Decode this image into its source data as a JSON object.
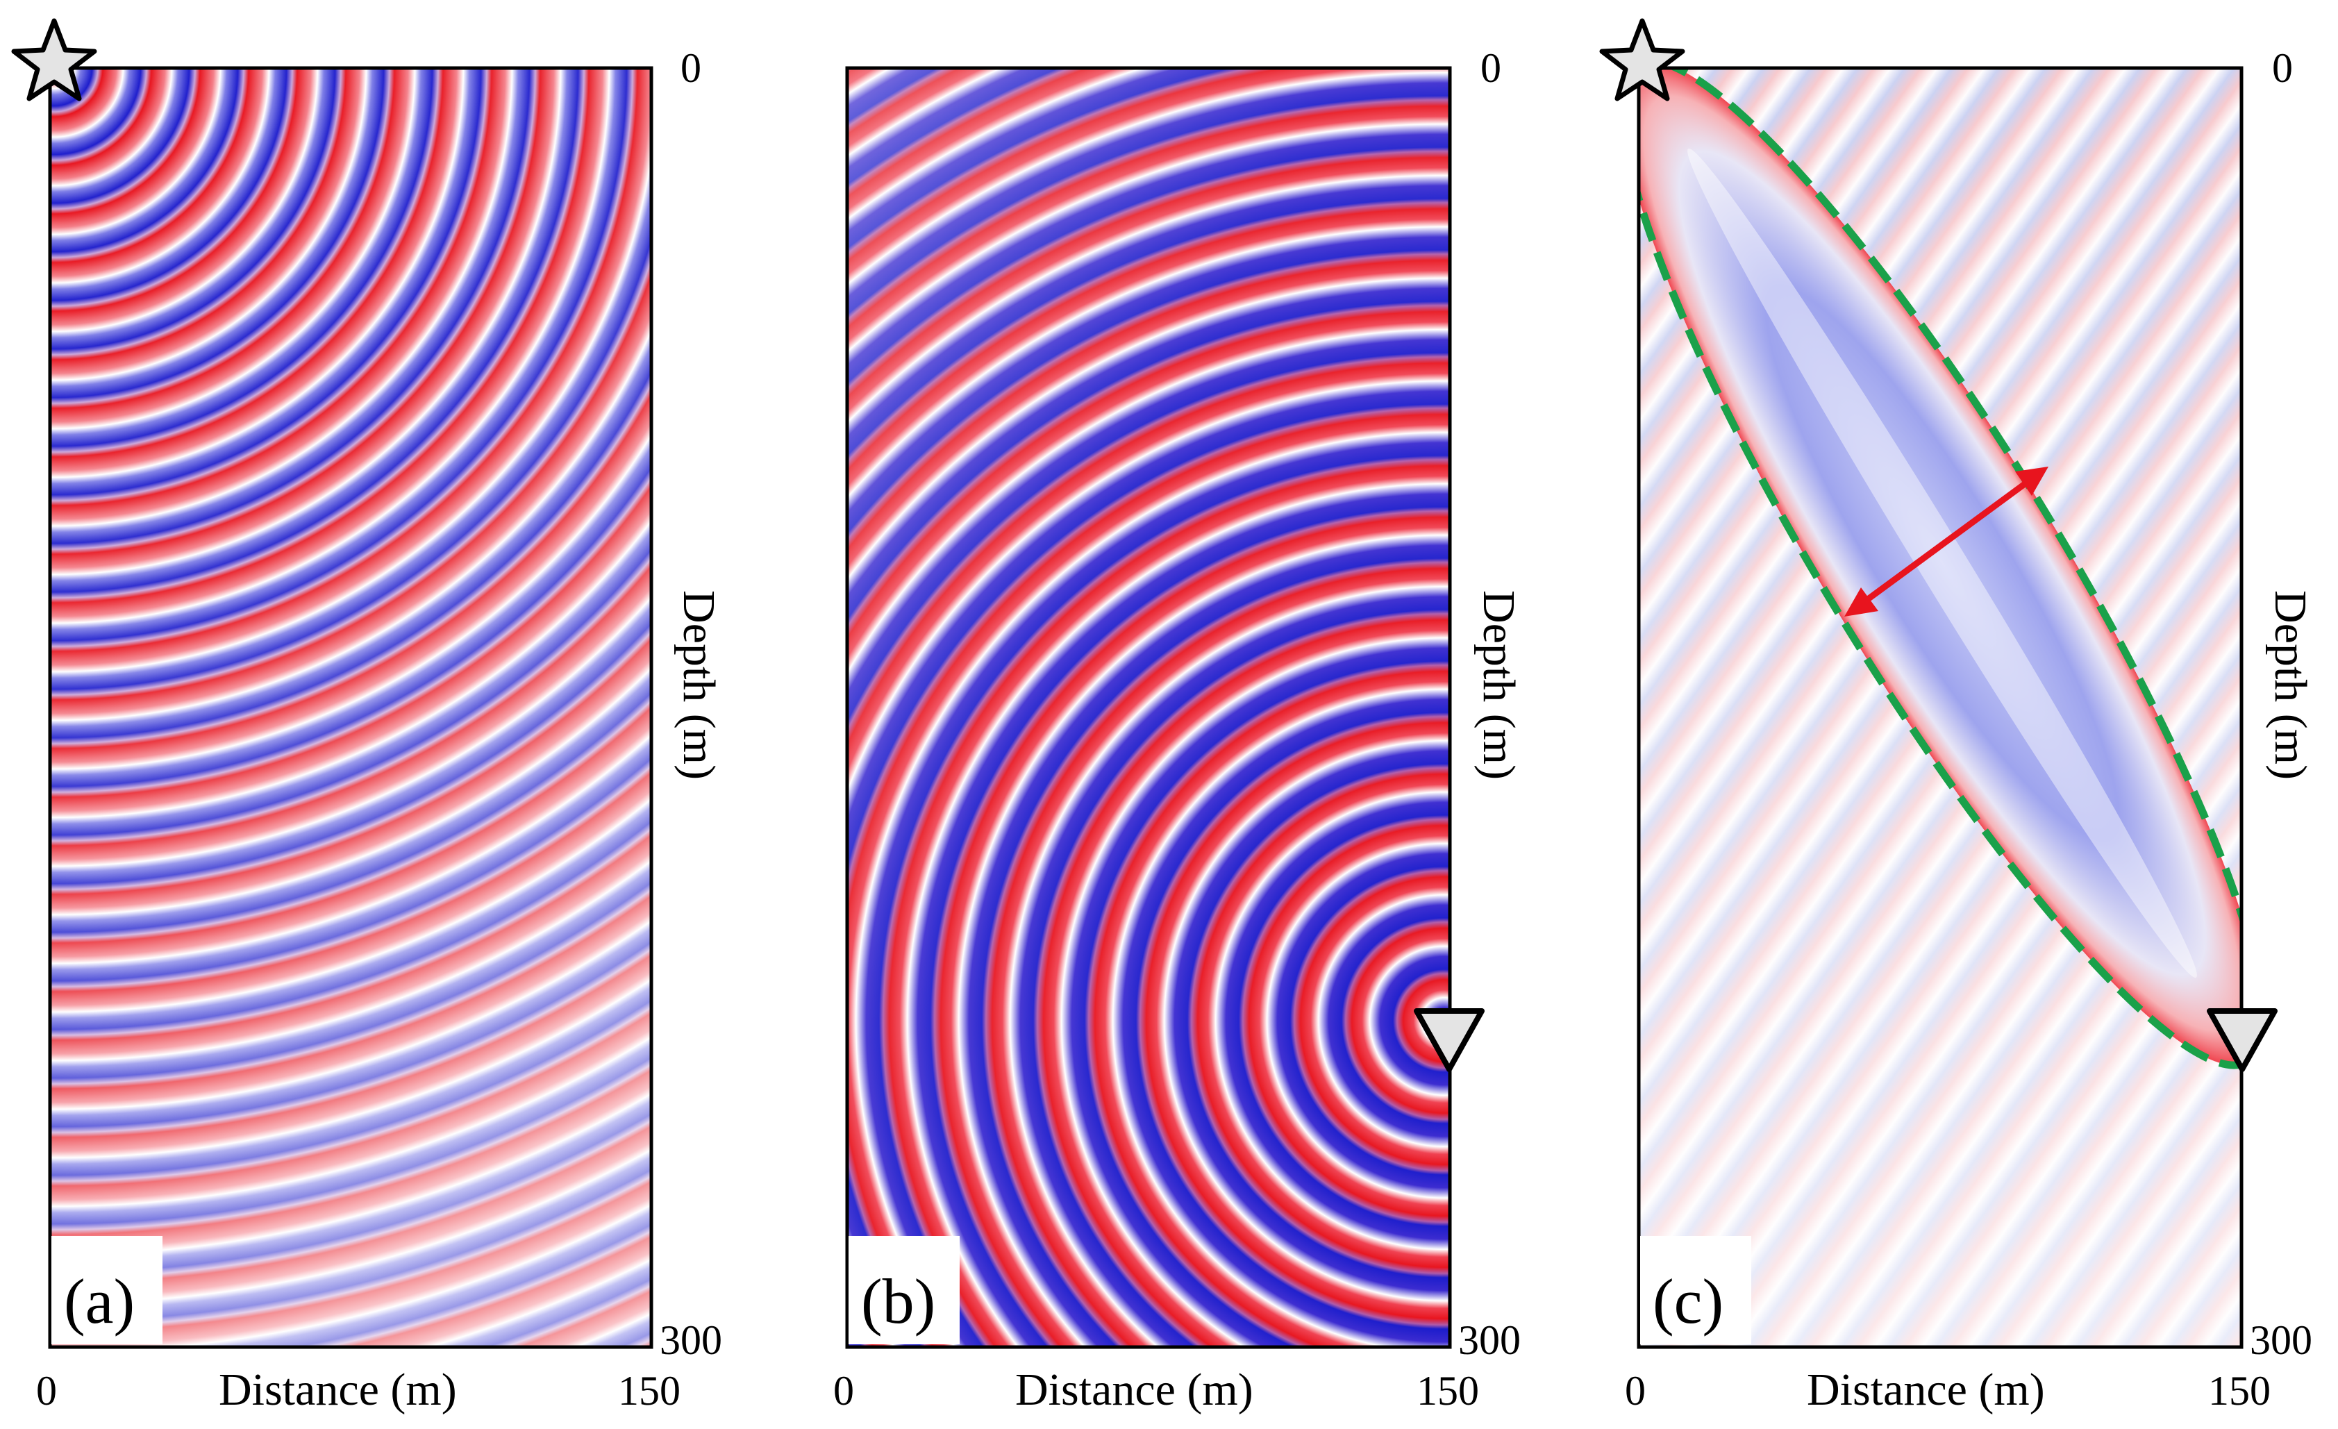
{
  "figure": {
    "panels": [
      {
        "id": "a",
        "label": "(a)",
        "x_axis_label": "Distance (m)",
        "y_axis_label": "Depth (m)",
        "x_ticks": [
          "0",
          "150"
        ],
        "y_ticks": [
          "0",
          "300"
        ],
        "wavefield": "source",
        "markers": [
          "star"
        ]
      },
      {
        "id": "b",
        "label": "(b)",
        "x_axis_label": "Distance (m)",
        "y_axis_label": "Depth (m)",
        "x_ticks": [
          "0",
          "150"
        ],
        "y_ticks": [
          "0",
          "300"
        ],
        "wavefield": "receiver",
        "markers": [
          "triangle"
        ]
      },
      {
        "id": "c",
        "label": "(c)",
        "x_axis_label": "Distance (m)",
        "y_axis_label": "Depth (m)",
        "x_ticks": [
          "0",
          "150"
        ],
        "y_ticks": [
          "0",
          "300"
        ],
        "wavefield": "sensitivity-kernel",
        "markers": [
          "star",
          "triangle",
          "ellipse-outline",
          "width-arrow"
        ]
      }
    ],
    "colors": {
      "positive": "#e8141e",
      "negative": "#1c1ccc",
      "ellipse": "#1aa14a",
      "arrow": "#e8141e",
      "marker_fill": "#e4e4e4"
    }
  }
}
